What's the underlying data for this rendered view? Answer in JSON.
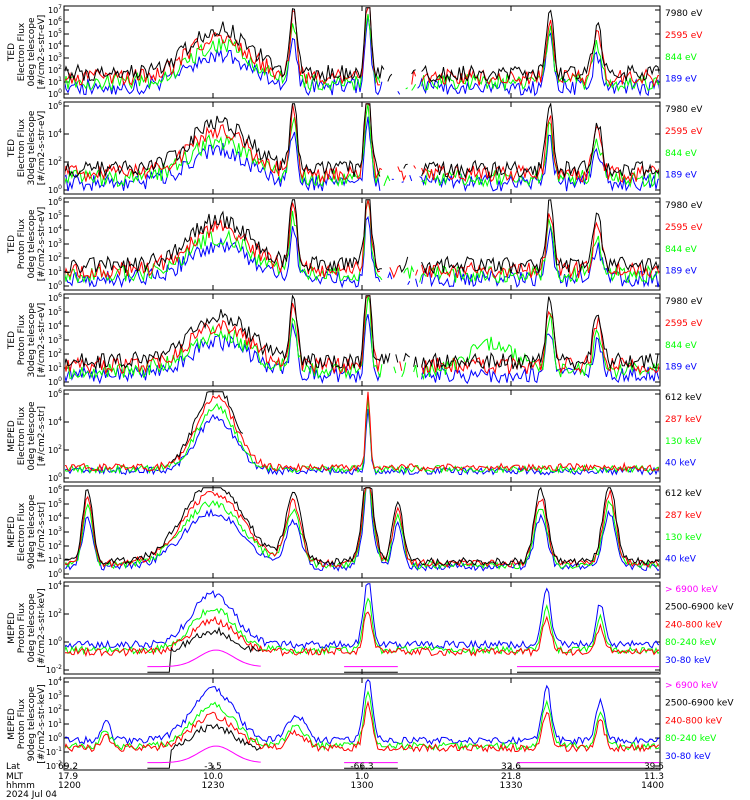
{
  "chart_data": [
    {
      "type": "line",
      "ylabel": [
        "TED",
        "Electron Flux",
        "0deg telescope",
        "[#/cm2-s-str-eV]"
      ],
      "ylim": [
        1,
        10000000
      ],
      "yticks": [
        "10^0",
        "10^1",
        "10^2",
        "10^3",
        "10^4",
        "10^5",
        "10^6",
        "10^7"
      ],
      "legend": [
        {
          "label": "7980 eV",
          "color": "#000000"
        },
        {
          "label": "2595 eV",
          "color": "#ff0000"
        },
        {
          "label": "844 eV",
          "color": "#00ff00"
        },
        {
          "label": "189 eV",
          "color": "#0000ff"
        }
      ]
    },
    {
      "type": "line",
      "ylabel": [
        "TED",
        "Electron Flux",
        "30deg telescope",
        "[#/cm2-s-str-eV]"
      ],
      "ylim": [
        1,
        10000000
      ],
      "yticks": [
        "10^0",
        "10^2",
        "10^4",
        "10^6"
      ],
      "legend": [
        {
          "label": "7980 eV",
          "color": "#000000"
        },
        {
          "label": "2595 eV",
          "color": "#ff0000"
        },
        {
          "label": "844 eV",
          "color": "#00ff00"
        },
        {
          "label": "189 eV",
          "color": "#0000ff"
        }
      ]
    },
    {
      "type": "line",
      "ylabel": [
        "TED",
        "Proton Flux",
        "0deg telescope",
        "[#/cm2-s-str-eV]"
      ],
      "ylim": [
        1,
        10000000
      ],
      "yticks": [
        "10^0",
        "10^1",
        "10^2",
        "10^3",
        "10^4",
        "10^5",
        "10^6"
      ],
      "legend": [
        {
          "label": "7980 eV",
          "color": "#000000"
        },
        {
          "label": "2595 eV",
          "color": "#ff0000"
        },
        {
          "label": "844 eV",
          "color": "#00ff00"
        },
        {
          "label": "189 eV",
          "color": "#0000ff"
        }
      ]
    },
    {
      "type": "line",
      "ylabel": [
        "TED",
        "Proton Flux",
        "30deg telescope",
        "[#/cm2-s-str-eV]"
      ],
      "ylim": [
        1,
        10000000
      ],
      "yticks": [
        "10^0",
        "10^1",
        "10^2",
        "10^3",
        "10^4",
        "10^5",
        "10^6"
      ],
      "legend": [
        {
          "label": "7980 eV",
          "color": "#000000"
        },
        {
          "label": "2595 eV",
          "color": "#ff0000"
        },
        {
          "label": "844 eV",
          "color": "#00ff00"
        },
        {
          "label": "189 eV",
          "color": "#0000ff"
        }
      ]
    },
    {
      "type": "line",
      "ylabel": [
        "MEPED",
        "Electron Flux",
        "0deg telescope",
        "[#/cm2-s-str]"
      ],
      "ylim": [
        1,
        10000000
      ],
      "yticks": [
        "10^0",
        "10^2",
        "10^4",
        "10^6"
      ],
      "legend": [
        {
          "label": "612 keV",
          "color": "#000000"
        },
        {
          "label": "287 keV",
          "color": "#ff0000"
        },
        {
          "label": "130 keV",
          "color": "#00ff00"
        },
        {
          "label": "40 keV",
          "color": "#0000ff"
        }
      ]
    },
    {
      "type": "line",
      "ylabel": [
        "MEPED",
        "Electron Flux",
        "90deg telescope",
        "[#/cm2-s-str]"
      ],
      "ylim": [
        1,
        10000000
      ],
      "yticks": [
        "10^0",
        "10^1",
        "10^2",
        "10^3",
        "10^4",
        "10^5",
        "10^6"
      ],
      "legend": [
        {
          "label": "612 keV",
          "color": "#000000"
        },
        {
          "label": "287 keV",
          "color": "#ff0000"
        },
        {
          "label": "130 keV",
          "color": "#00ff00"
        },
        {
          "label": "40 keV",
          "color": "#0000ff"
        }
      ]
    },
    {
      "type": "line",
      "ylabel": [
        "MEPED",
        "Proton Flux",
        "0deg telescope",
        "[#/cm2-s-str-keV]"
      ],
      "ylim": [
        0.001,
        100000
      ],
      "yticks": [
        "10^-2",
        "10^0",
        "10^2",
        "10^4"
      ],
      "legend": [
        {
          "label": "> 6900 keV",
          "color": "#ff00ff"
        },
        {
          "label": "2500-6900 keV",
          "color": "#000000"
        },
        {
          "label": "240-800 keV",
          "color": "#ff0000"
        },
        {
          "label": "80-240 keV",
          "color": "#00ff00"
        },
        {
          "label": "30-80 keV",
          "color": "#0000ff"
        }
      ]
    },
    {
      "type": "line",
      "ylabel": [
        "MEPED",
        "Proton Flux",
        "90deg telescope",
        "[#/cm2-s-str-keV]"
      ],
      "ylim": [
        0.001,
        100000
      ],
      "yticks": [
        "10^-2",
        "10^-1",
        "10^0",
        "10^1",
        "10^2",
        "10^3",
        "10^4"
      ],
      "legend": [
        {
          "label": "> 6900 keV",
          "color": "#ff00ff"
        },
        {
          "label": "2500-6900 keV",
          "color": "#000000"
        },
        {
          "label": "240-800 keV",
          "color": "#ff0000"
        },
        {
          "label": "80-240 keV",
          "color": "#00ff00"
        },
        {
          "label": "30-80 keV",
          "color": "#0000ff"
        }
      ]
    }
  ],
  "xaxis": {
    "row_labels": [
      "Lat",
      "MLT",
      "hhmm",
      "2024 Jul 04"
    ],
    "ticks": [
      {
        "lat": "69.2",
        "mlt": "17.9",
        "hhmm": "1200"
      },
      {
        "lat": "-3.5",
        "mlt": "10.0",
        "hhmm": "1230"
      },
      {
        "lat": "-66.3",
        "mlt": "1.0",
        "hhmm": "1300"
      },
      {
        "lat": "32.6",
        "mlt": "21.8",
        "hhmm": "1330"
      },
      {
        "lat": "39.5",
        "mlt": "11.3",
        "hhmm": "1400"
      }
    ]
  }
}
